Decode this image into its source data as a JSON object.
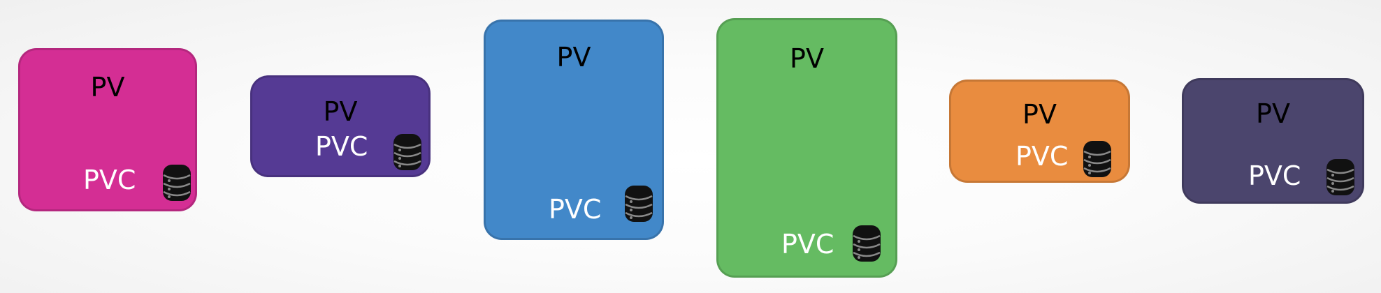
{
  "diagram": {
    "volumes": [
      {
        "pv_label": "PV",
        "pvc_label": "PVC",
        "color": "#d42e94",
        "icon": "database-icon"
      },
      {
        "pv_label": "PV",
        "pvc_label": "PVC",
        "color": "#553a94",
        "icon": "database-icon"
      },
      {
        "pv_label": "PV",
        "pvc_label": "PVC",
        "color": "#4288c9",
        "icon": "database-icon"
      },
      {
        "pv_label": "PV",
        "pvc_label": "PVC",
        "color": "#65bb62",
        "icon": "database-icon"
      },
      {
        "pv_label": "PV",
        "pvc_label": "PVC",
        "color": "#e98c3f",
        "icon": "database-icon"
      },
      {
        "pv_label": "PV",
        "pvc_label": "PVC",
        "color": "#4b456d",
        "icon": "database-icon"
      }
    ]
  }
}
